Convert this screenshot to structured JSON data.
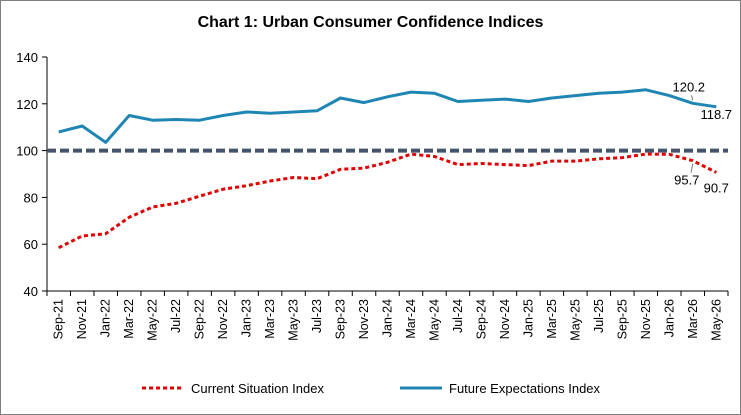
{
  "chart_data": {
    "type": "line",
    "title": "Chart 1: Urban Consumer Confidence Indices",
    "xlabel": "",
    "ylabel": "",
    "ylim": [
      40,
      140
    ],
    "yticks": [
      "40",
      "60",
      "80",
      "100",
      "120",
      "140"
    ],
    "reference_line": 100,
    "categories": [
      "Sep-21",
      "Nov-21",
      "Jan-22",
      "Mar-22",
      "May-22",
      "Jul-22",
      "Sep-22",
      "Nov-22",
      "Jan-23",
      "Mar-23",
      "May-23",
      "Jul-23",
      "Sep-23",
      "Nov-23",
      "Jan-24",
      "Mar-24",
      "May-24",
      "Jul-24",
      "Sep-24",
      "Nov-24",
      "Jan-25",
      "Mar-25",
      "May-25",
      "Jul-25",
      "Sep-25",
      "Nov-25",
      "Jan-26",
      "Mar-26",
      "May-26"
    ],
    "series": [
      {
        "name": "Current Situation Index",
        "color": "#e00000",
        "style": "dashed",
        "values": [
          58.5,
          63.5,
          64.5,
          71.5,
          75.9,
          77.5,
          80.5,
          83.5,
          85.0,
          87.0,
          88.5,
          88.0,
          92.0,
          92.5,
          95.0,
          98.5,
          97.5,
          94.0,
          94.5,
          94.0,
          93.6,
          95.5,
          95.5,
          96.5,
          97.0,
          98.5,
          98.4,
          95.7,
          90.7
        ]
      },
      {
        "name": "Future Expectations Index",
        "color": "#1f86b4",
        "style": "solid",
        "values": [
          108.0,
          110.5,
          103.5,
          115.0,
          113.0,
          113.3,
          113.0,
          115.0,
          116.5,
          116.0,
          116.5,
          117.0,
          122.5,
          120.5,
          123.0,
          125.0,
          124.5,
          121.0,
          121.5,
          122.0,
          121.0,
          122.5,
          123.5,
          124.5,
          125.0,
          126.0,
          123.5,
          120.2,
          118.7
        ]
      }
    ],
    "data_labels": [
      {
        "series": 0,
        "index": 27,
        "text": "95.7"
      },
      {
        "series": 0,
        "index": 28,
        "text": "90.7"
      },
      {
        "series": 1,
        "index": 27,
        "text": "120.2"
      },
      {
        "series": 1,
        "index": 28,
        "text": "118.7"
      }
    ],
    "legend_position": "bottom"
  }
}
